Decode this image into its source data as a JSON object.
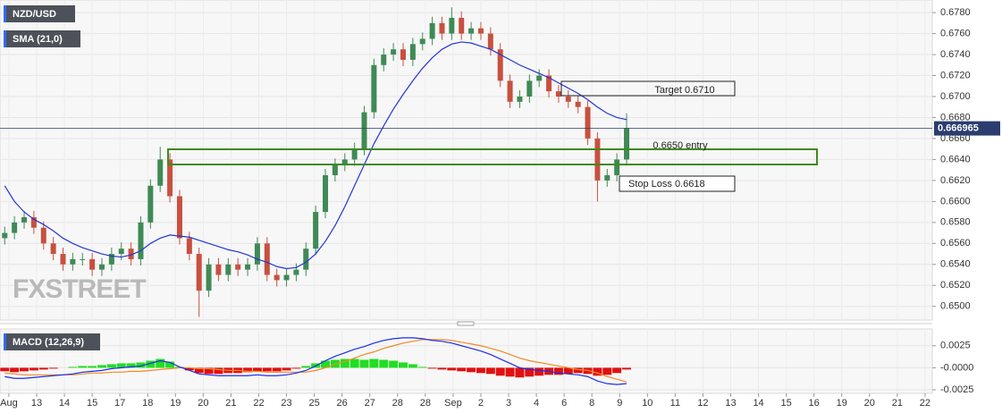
{
  "chart_data": [
    {
      "type": "candlestick",
      "x": [
        -0.15,
        0.2,
        0.55,
        0.9,
        1.25,
        1.6,
        1.95,
        2.3,
        2.65,
        3,
        3.35,
        3.7,
        4.05,
        4.4,
        4.75,
        5.1,
        5.45,
        5.8,
        6.15,
        6.5,
        6.85,
        7.2,
        7.55,
        7.9,
        8.25,
        8.6,
        8.95,
        9.3,
        9.65,
        10,
        10.35,
        10.7,
        11.05,
        11.4,
        11.75,
        12.1,
        12.45,
        12.8,
        13.15,
        13.5,
        13.85,
        14.2,
        14.55,
        14.9,
        15.25,
        15.6,
        15.95,
        16.3,
        16.65,
        17,
        17.35,
        17.7,
        18.05,
        18.4,
        18.75,
        19.1,
        19.45,
        19.8,
        20.15,
        20.5,
        20.85,
        21.2,
        21.55,
        21.9,
        22.25
      ],
      "xlim": [
        -0.32,
        33.26
      ],
      "ylim": [
        0.6487,
        0.6792
      ],
      "yticks": [
        {
          "value": 0.678,
          "label": "0.6780"
        },
        {
          "value": 0.676,
          "label": "0.6760"
        },
        {
          "value": 0.674,
          "label": "0.6740"
        },
        {
          "value": 0.672,
          "label": "0.6720"
        },
        {
          "value": 0.67,
          "label": "0.6700"
        },
        {
          "value": 0.668,
          "label": "0.6680"
        },
        {
          "value": 0.666,
          "label": "0.6660"
        },
        {
          "value": 0.664,
          "label": "0.6640"
        },
        {
          "value": 0.662,
          "label": "0.6620"
        },
        {
          "value": 0.66,
          "label": "0.6600"
        },
        {
          "value": 0.658,
          "label": "0.6580"
        },
        {
          "value": 0.656,
          "label": "0.6560"
        },
        {
          "value": 0.654,
          "label": "0.6540"
        },
        {
          "value": 0.652,
          "label": "0.6520"
        },
        {
          "value": 0.65,
          "label": "0.6500"
        }
      ],
      "grid": true,
      "last_price": 0.666965,
      "watermark": "FXSTREET",
      "series": [
        {
          "name": "NZD/USD",
          "up_color": "#3f8a55",
          "down_color": "#c8503f",
          "open": [
            0.6565,
            0.657,
            0.658,
            0.6585,
            0.6575,
            0.656,
            0.655,
            0.654,
            0.6545,
            0.6545,
            0.6535,
            0.654,
            0.655,
            0.6555,
            0.6545,
            0.658,
            0.6615,
            0.664,
            0.6605,
            0.6565,
            0.655,
            0.6515,
            0.654,
            0.653,
            0.654,
            0.6535,
            0.654,
            0.656,
            0.653,
            0.6525,
            0.653,
            0.6535,
            0.6555,
            0.659,
            0.6625,
            0.6635,
            0.664,
            0.665,
            0.6685,
            0.673,
            0.674,
            0.6745,
            0.6735,
            0.675,
            0.6755,
            0.677,
            0.676,
            0.6775,
            0.676,
            0.6765,
            0.676,
            0.6745,
            0.6715,
            0.6695,
            0.67,
            0.6715,
            0.672,
            0.6705,
            0.67,
            0.6695,
            0.669,
            0.666,
            0.662,
            0.6625,
            0.664
          ],
          "high": [
            0.6576,
            0.6586,
            0.6591,
            0.6591,
            0.6581,
            0.6566,
            0.6556,
            0.6551,
            0.6551,
            0.6551,
            0.6546,
            0.6556,
            0.6561,
            0.6561,
            0.6586,
            0.6621,
            0.6652,
            0.6646,
            0.6611,
            0.6571,
            0.6556,
            0.6546,
            0.6546,
            0.6546,
            0.6546,
            0.6546,
            0.6566,
            0.6566,
            0.6536,
            0.6536,
            0.6541,
            0.6561,
            0.6596,
            0.6631,
            0.6641,
            0.6646,
            0.6656,
            0.6691,
            0.6736,
            0.6746,
            0.6751,
            0.6751,
            0.6756,
            0.6761,
            0.6776,
            0.6776,
            0.6785,
            0.6781,
            0.6771,
            0.6771,
            0.6766,
            0.6751,
            0.6721,
            0.6706,
            0.6721,
            0.6726,
            0.6726,
            0.6711,
            0.6706,
            0.6701,
            0.6696,
            0.6666,
            0.6631,
            0.6646,
            0.6684
          ],
          "low": [
            0.6559,
            0.6564,
            0.6574,
            0.6569,
            0.6554,
            0.6544,
            0.6534,
            0.6534,
            0.6539,
            0.6529,
            0.6529,
            0.6534,
            0.6544,
            0.6539,
            0.6539,
            0.6574,
            0.6609,
            0.6599,
            0.6559,
            0.6544,
            0.649,
            0.6509,
            0.6524,
            0.6524,
            0.6529,
            0.6529,
            0.6534,
            0.6524,
            0.6519,
            0.6519,
            0.6524,
            0.6529,
            0.6549,
            0.6584,
            0.6619,
            0.6629,
            0.6634,
            0.6644,
            0.6679,
            0.6724,
            0.6734,
            0.6729,
            0.6729,
            0.6744,
            0.6749,
            0.6754,
            0.6754,
            0.6754,
            0.6754,
            0.6754,
            0.6739,
            0.6709,
            0.6689,
            0.6689,
            0.6694,
            0.6709,
            0.6699,
            0.6694,
            0.6689,
            0.6684,
            0.6654,
            0.66,
            0.6614,
            0.6619,
            0.6634
          ],
          "close": [
            0.657,
            0.658,
            0.6585,
            0.6575,
            0.656,
            0.655,
            0.654,
            0.6545,
            0.6545,
            0.6535,
            0.654,
            0.655,
            0.6555,
            0.6545,
            0.658,
            0.6615,
            0.664,
            0.6605,
            0.6565,
            0.655,
            0.6515,
            0.654,
            0.653,
            0.654,
            0.6535,
            0.654,
            0.656,
            0.653,
            0.6525,
            0.653,
            0.6535,
            0.6555,
            0.659,
            0.6625,
            0.6635,
            0.664,
            0.665,
            0.6685,
            0.673,
            0.674,
            0.6745,
            0.6735,
            0.675,
            0.6755,
            0.677,
            0.676,
            0.6775,
            0.676,
            0.6765,
            0.676,
            0.6745,
            0.6715,
            0.6695,
            0.67,
            0.6715,
            0.672,
            0.6705,
            0.67,
            0.6695,
            0.669,
            0.666,
            0.662,
            0.6625,
            0.664,
            0.667
          ]
        },
        {
          "name": "SMA (21,0)",
          "color": "#2435d6",
          "values": [
            0.6615,
            0.66,
            0.659,
            0.6583,
            0.6578,
            0.6572,
            0.6565,
            0.656,
            0.6556,
            0.6553,
            0.655,
            0.6548,
            0.6547,
            0.6549,
            0.6553,
            0.656,
            0.6565,
            0.6568,
            0.6567,
            0.6566,
            0.6563,
            0.656,
            0.6557,
            0.6554,
            0.6552,
            0.6549,
            0.6545,
            0.6542,
            0.6538,
            0.6536,
            0.6537,
            0.6542,
            0.655,
            0.6562,
            0.6577,
            0.6595,
            0.6615,
            0.6635,
            0.6655,
            0.6672,
            0.6688,
            0.6702,
            0.6715,
            0.6727,
            0.6737,
            0.6745,
            0.675,
            0.6752,
            0.6751,
            0.6748,
            0.6745,
            0.674,
            0.6735,
            0.673,
            0.6726,
            0.6722,
            0.6718,
            0.6713,
            0.6708,
            0.6703,
            0.6697,
            0.669,
            0.6684,
            0.668,
            0.6678
          ]
        }
      ],
      "annotations": [
        "Target 0.6710",
        "0.6650 entry",
        "Stop Loss 0.6618"
      ]
    },
    {
      "type": "macd",
      "title": "MACD (12,26,9)",
      "x": [
        -0.15,
        0.2,
        0.55,
        0.9,
        1.25,
        1.6,
        1.95,
        2.3,
        2.65,
        3,
        3.35,
        3.7,
        4.05,
        4.4,
        4.75,
        5.1,
        5.45,
        5.8,
        6.15,
        6.5,
        6.85,
        7.2,
        7.55,
        7.9,
        8.25,
        8.6,
        8.95,
        9.3,
        9.65,
        10,
        10.35,
        10.7,
        11.05,
        11.4,
        11.75,
        12.1,
        12.45,
        12.8,
        13.15,
        13.5,
        13.85,
        14.2,
        14.55,
        14.9,
        15.25,
        15.6,
        15.95,
        16.3,
        16.65,
        17,
        17.35,
        17.7,
        18.05,
        18.4,
        18.75,
        19.1,
        19.45,
        19.8,
        20.15,
        20.5,
        20.85,
        21.2,
        21.55,
        21.9,
        22.25
      ],
      "xlim": [
        -0.32,
        33.26
      ],
      "xticks": [
        {
          "value": 0,
          "label": "Aug"
        },
        {
          "value": 1,
          "label": "13"
        },
        {
          "value": 2,
          "label": "14"
        },
        {
          "value": 3,
          "label": "15"
        },
        {
          "value": 4,
          "label": "17"
        },
        {
          "value": 5,
          "label": "18"
        },
        {
          "value": 6,
          "label": "19"
        },
        {
          "value": 7,
          "label": "20"
        },
        {
          "value": 8,
          "label": "21"
        },
        {
          "value": 9,
          "label": "22"
        },
        {
          "value": 10,
          "label": "23"
        },
        {
          "value": 11,
          "label": "25"
        },
        {
          "value": 12,
          "label": "26"
        },
        {
          "value": 13,
          "label": "27"
        },
        {
          "value": 14,
          "label": "28"
        },
        {
          "value": 15,
          "label": "28"
        },
        {
          "value": 16,
          "label": "Sep"
        },
        {
          "value": 17,
          "label": "2"
        },
        {
          "value": 18,
          "label": "3"
        },
        {
          "value": 19,
          "label": "4"
        },
        {
          "value": 20,
          "label": "6"
        },
        {
          "value": 21,
          "label": "8"
        },
        {
          "value": 22,
          "label": "9"
        },
        {
          "value": 23,
          "label": "10"
        },
        {
          "value": 24,
          "label": "11"
        },
        {
          "value": 25,
          "label": "12"
        },
        {
          "value": 26,
          "label": "13"
        },
        {
          "value": 27,
          "label": "14"
        },
        {
          "value": 28,
          "label": "15"
        },
        {
          "value": 29,
          "label": "16"
        },
        {
          "value": 30,
          "label": "19"
        },
        {
          "value": 31,
          "label": "20"
        },
        {
          "value": 32,
          "label": "21"
        },
        {
          "value": 33,
          "label": "22"
        }
      ],
      "ylim": [
        -0.0029,
        0.0044
      ],
      "yticks": [
        0.0025,
        {
          "value": 0,
          "label": "-0.0000"
        },
        -0.0025
      ],
      "histogram": {
        "up_color": "#22dd22",
        "down_color": "#e01010",
        "values": [
          -0.0004,
          -0.0005,
          -0.0004,
          -0.0003,
          -0.0002,
          -0.0001,
          0,
          0.0001,
          0.0002,
          0.0002,
          0.0003,
          0.0004,
          0.0005,
          0.0005,
          0.0006,
          0.0008,
          0.001,
          0.0007,
          0.0001,
          -0.0003,
          -0.0006,
          -0.0007,
          -0.0007,
          -0.0006,
          -0.0006,
          -0.0005,
          -0.0004,
          -0.0004,
          -0.0004,
          -0.0003,
          -0.0001,
          0.0002,
          0.0005,
          0.0008,
          0.0009,
          0.001,
          0.001,
          0.0009,
          0.001,
          0.0009,
          0.0008,
          0.0006,
          0.0004,
          0.0001,
          -0.0001,
          -0.0002,
          -0.0003,
          -0.0004,
          -0.0005,
          -0.0006,
          -0.0007,
          -0.0009,
          -0.001,
          -0.0011,
          -0.001,
          -0.0009,
          -0.0008,
          -0.0008,
          -0.0007,
          -0.0006,
          -0.0007,
          -0.0009,
          -0.0008,
          -0.0006,
          -0.0002
        ]
      },
      "macd_line": {
        "color": "#1c2cf0",
        "values": [
          -0.001,
          -0.0012,
          -0.0012,
          -0.0011,
          -0.001,
          -0.0009,
          -0.0008,
          -0.0007,
          -0.0005,
          -0.0004,
          -0.0003,
          -0.0001,
          0,
          0.0001,
          0.0002,
          0.0005,
          0.0008,
          0.0006,
          0.0001,
          -0.0003,
          -0.0007,
          -0.0008,
          -0.0009,
          -0.0009,
          -0.0009,
          -0.0009,
          -0.0008,
          -0.0009,
          -0.0009,
          -0.0008,
          -0.0006,
          -0.0003,
          0.0002,
          0.0008,
          0.0013,
          0.0017,
          0.0021,
          0.0024,
          0.0028,
          0.0031,
          0.0033,
          0.0034,
          0.0034,
          0.0033,
          0.0031,
          0.003,
          0.0028,
          0.0025,
          0.0022,
          0.0019,
          0.0015,
          0.001,
          0.0005,
          0,
          -0.0002,
          -0.0003,
          -0.0004,
          -0.0006,
          -0.0007,
          -0.0008,
          -0.001,
          -0.0015,
          -0.0018,
          -0.0019,
          -0.0018
        ]
      },
      "signal_line": {
        "color": "#f08a24",
        "values": [
          -0.0006,
          -0.0007,
          -0.0008,
          -0.0008,
          -0.0008,
          -0.0008,
          -0.0008,
          -0.0008,
          -0.0007,
          -0.0006,
          -0.0006,
          -0.0005,
          -0.0005,
          -0.0004,
          -0.0004,
          -0.0003,
          -0.0002,
          -0.0001,
          0,
          0,
          -0.0001,
          -0.0001,
          -0.0002,
          -0.0003,
          -0.0003,
          -0.0004,
          -0.0004,
          -0.0005,
          -0.0005,
          -0.0005,
          -0.0005,
          -0.0005,
          -0.0003,
          0,
          0.0004,
          0.0007,
          0.0011,
          0.0015,
          0.0018,
          0.0022,
          0.0025,
          0.0028,
          0.003,
          0.0032,
          0.0032,
          0.0032,
          0.0031,
          0.0029,
          0.0027,
          0.0025,
          0.0022,
          0.0019,
          0.0015,
          0.0011,
          0.0008,
          0.0006,
          0.0004,
          0.0002,
          0,
          -0.0002,
          -0.0003,
          -0.0006,
          -0.001,
          -0.0013,
          -0.0016
        ]
      }
    }
  ]
}
